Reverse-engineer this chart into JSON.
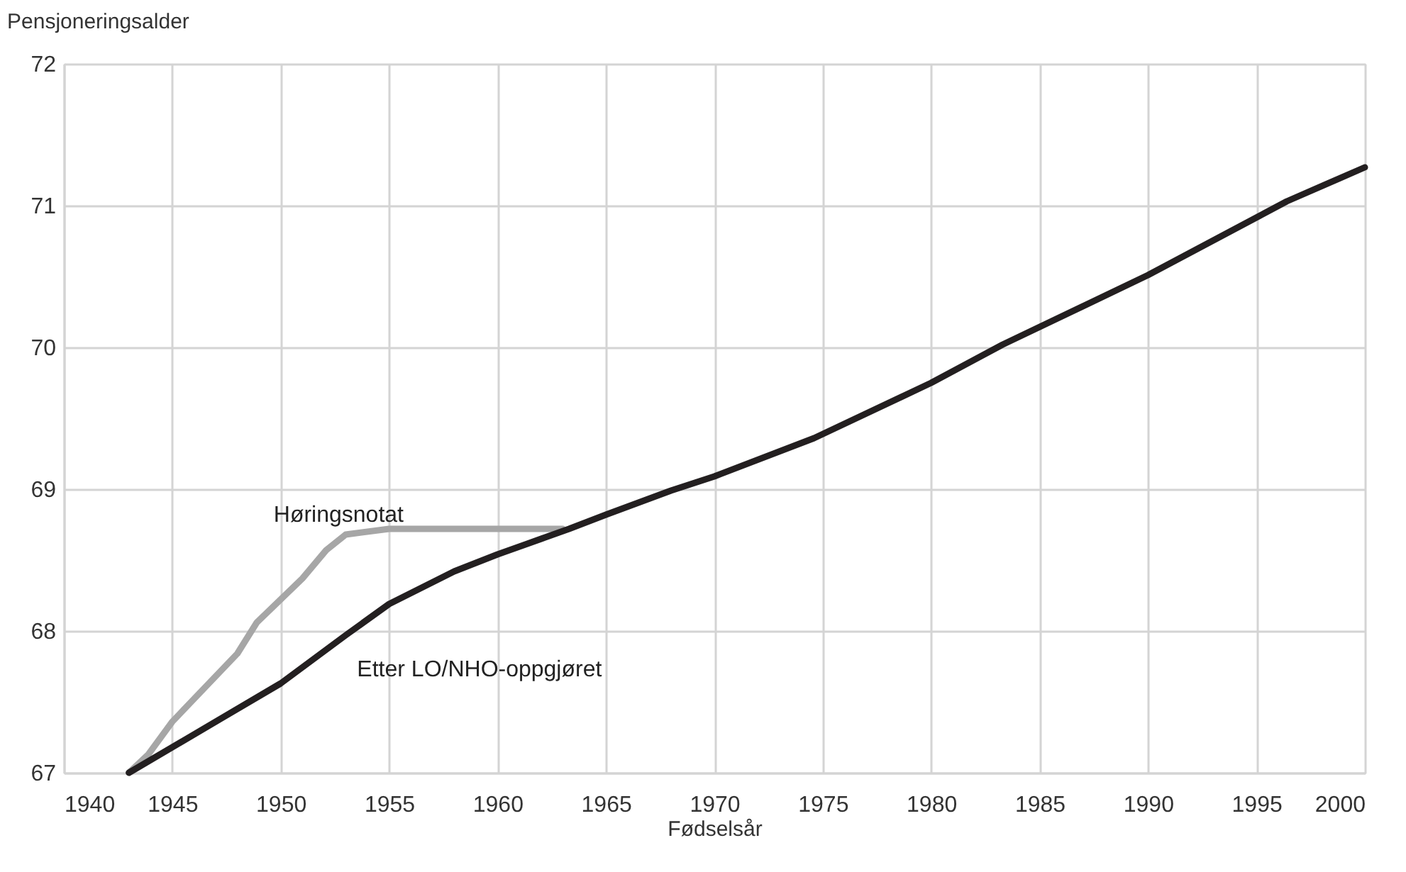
{
  "chart_data": {
    "type": "line",
    "xlabel": "Fødselsår",
    "ylabel": "Pensjoneringsalder",
    "xlim": [
      1940,
      2000
    ],
    "xticks": [
      1940,
      1945,
      1950,
      1955,
      1960,
      1965,
      1970,
      1975,
      1980,
      1985,
      1990,
      1995,
      2000
    ],
    "ylim": [
      67,
      72
    ],
    "yticks": [
      67,
      68,
      69,
      70,
      71,
      72
    ],
    "grid": true,
    "marker": "none",
    "line_style": "solid",
    "series": [
      {
        "name": "Høringsnotat",
        "color": "#a6a6a6",
        "x": [
          1943,
          1943.9,
          1945,
          1948,
          1948.9,
          1951,
          1952.1,
          1953,
          1955,
          1960,
          1963
        ],
        "values": [
          67,
          67.13,
          67.36,
          67.84,
          68.06,
          68.37,
          68.57,
          68.68,
          68.72,
          68.72,
          68.72
        ]
      },
      {
        "name": "Etter LO/NHO-oppgjøret",
        "color": "#231f20",
        "x": [
          1943,
          1950,
          1953,
          1955,
          1958,
          1960,
          1963.3,
          1965,
          1968,
          1970,
          1974.6,
          1980,
          1983.3,
          1990,
          1996.4,
          2000
        ],
        "values": [
          67,
          67.63,
          67.97,
          68.19,
          68.42,
          68.54,
          68.72,
          68.82,
          68.99,
          69.09,
          69.36,
          69.75,
          70.02,
          70.51,
          71.03,
          71.27
        ]
      }
    ]
  }
}
